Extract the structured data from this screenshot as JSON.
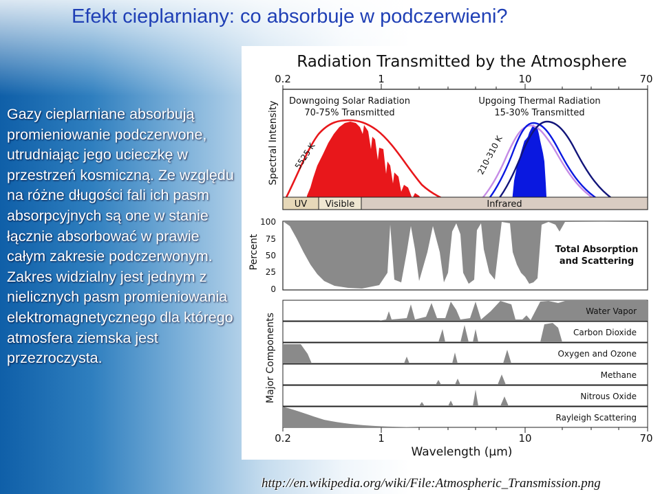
{
  "slide": {
    "title": "Efekt cieplarniany: co absorbuje w podczerwieni?",
    "body_text": "Gazy cieplarniane absorbują promieniowanie podczerwone, utrudniając jego ucieczkę w przestrzeń kosmiczną. Ze względu na różne długości fali ich pasm absorpcyjnych są one w stanie łącznie absorbować w prawie całym zakresie podczerwonym. Zakres widzialny jest jednym z nielicznych pasm promieniowania elektromagnetycznego dla którego atmosfera ziemska jest przezroczysta.",
    "source_link": "http://en.wikipedia.org/wiki/File:Atmospheric_Transmission.png"
  },
  "figure": {
    "title": "Radiation Transmitted by the Atmosphere",
    "top_ticks": [
      "0.2",
      "1",
      "10",
      "70"
    ],
    "bottom_ticks": [
      "0.2",
      "1",
      "10",
      "70"
    ],
    "xlabel": "Wavelength (μm)",
    "spectral": {
      "ylabel": "Spectral Intensity",
      "solar_label_1": "Downgoing Solar Radiation",
      "solar_label_2": "70-75% Transmitted",
      "thermal_label_1": "Upgoing Thermal Radiation",
      "thermal_label_2": "15-30% Transmitted",
      "solar_temp": "5525 K",
      "earth_temp": "210-310 K",
      "band_uv": "UV",
      "band_visible": "Visible",
      "band_infrared": "Infrared",
      "colors": {
        "solar": "#e8171b",
        "thermal_blue": "#0a18e0",
        "navy": "#12157a",
        "violet": "#c58be6"
      }
    },
    "absorption": {
      "ylabel": "Percent",
      "ticks": [
        "100",
        "75",
        "50",
        "25",
        "0"
      ],
      "label_1": "Total Absorption",
      "label_2": "and Scattering"
    },
    "components": {
      "ylabel": "Major Components",
      "rows": [
        "Water Vapor",
        "Carbon Dioxide",
        "Oxygen and Ozone",
        "Methane",
        "Nitrous Oxide",
        "Rayleigh Scattering"
      ]
    }
  }
}
